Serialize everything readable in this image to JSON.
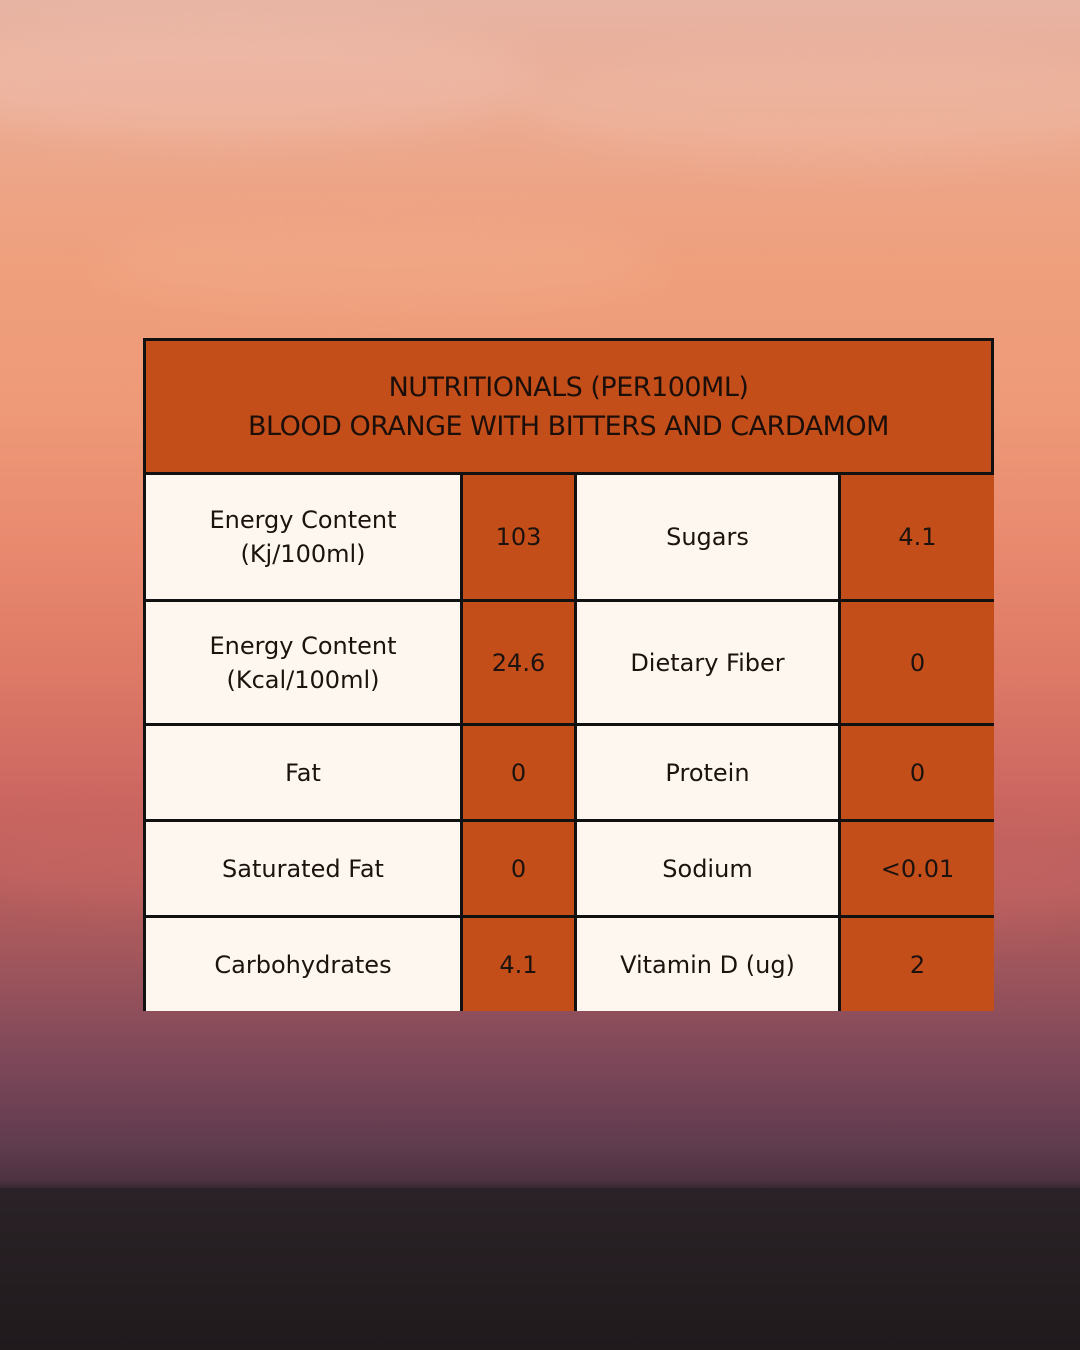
{
  "title": {
    "line1": "NUTRITIONALS (PER100ML)",
    "line2": "BLOOD ORANGE WITH BITTERS AND CARDAMOM"
  },
  "rows": [
    {
      "left_label_line1": "Energy Content",
      "left_label_line2": "(Kj/100ml)",
      "left_value": "103",
      "right_label": "Sugars",
      "right_value": "4.1"
    },
    {
      "left_label_line1": "Energy Content",
      "left_label_line2": "(Kcal/100ml)",
      "left_value": "24.6",
      "right_label": "Dietary Fiber",
      "right_value": "0"
    },
    {
      "left_label_line1": "Fat",
      "left_label_line2": "",
      "left_value": "0",
      "right_label": "Protein",
      "right_value": "0"
    },
    {
      "left_label_line1": "Saturated Fat",
      "left_label_line2": "",
      "left_value": "0",
      "right_label": "Sodium",
      "right_value": "<0.01"
    },
    {
      "left_label_line1": "Carbohydrates",
      "left_label_line2": "",
      "left_value": "4.1",
      "right_label": "Vitamin D (ug)",
      "right_value": "2"
    }
  ],
  "colors": {
    "accent": "#c44e1a",
    "cell_background": "#fdf7ef",
    "border": "#111111"
  }
}
